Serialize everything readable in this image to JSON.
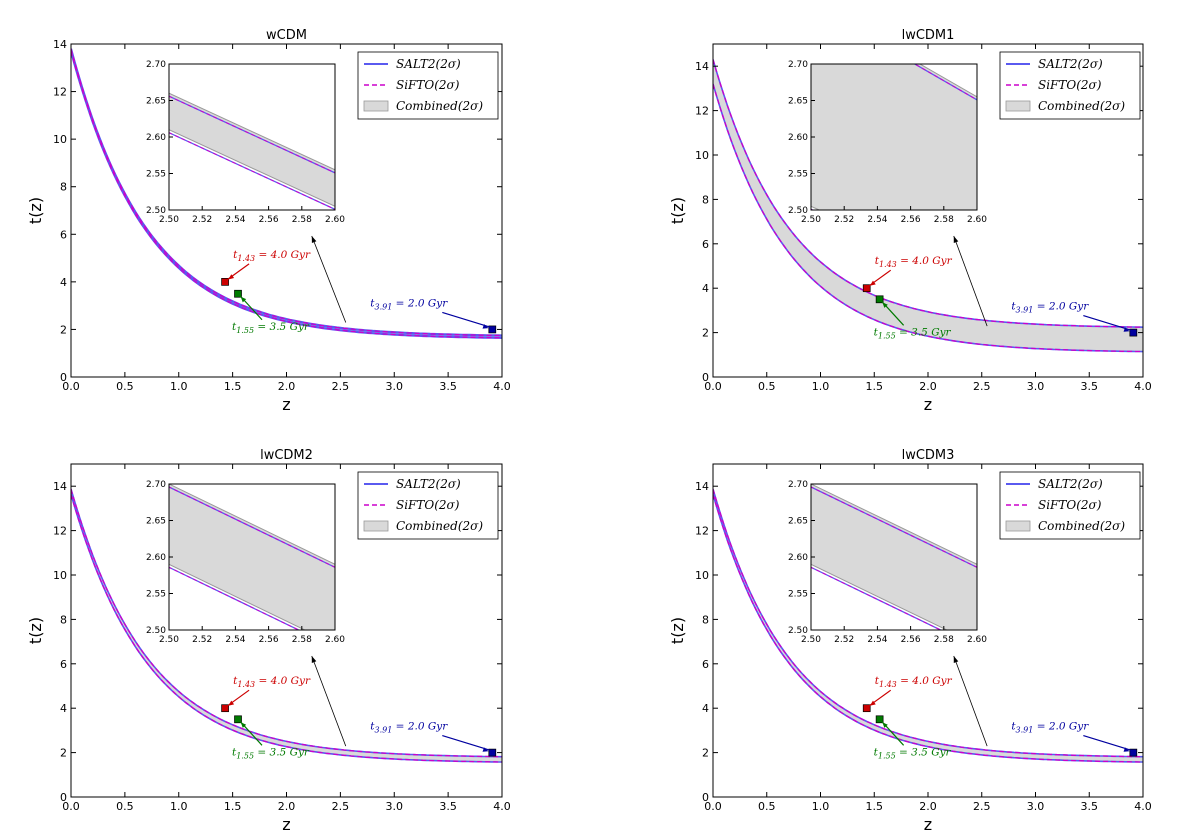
{
  "figure": {
    "colors": {
      "salt2": "#5a5af0",
      "sifto": "#cc00cc",
      "band_fill": "#d9d9d9",
      "band_edge": "#999999",
      "red": "#cc0000",
      "green": "#007a00",
      "blue": "#00009f"
    }
  },
  "chart_data": [
    {
      "type": "line",
      "title": "wCDM",
      "xlabel": "z",
      "ylabel": "t(z)",
      "xlim": [
        0,
        4
      ],
      "ylim": [
        0,
        14
      ],
      "xticks": [
        "0.0",
        "0.5",
        "1.0",
        "1.5",
        "2.0",
        "2.5",
        "3.0",
        "3.5",
        "4.0"
      ],
      "yticks": [
        "0",
        "2",
        "4",
        "6",
        "8",
        "10",
        "12",
        "14"
      ],
      "curve": {
        "t0": 13.75,
        "amp": 12.1,
        "k": 1.4
      },
      "band_width": 0.05,
      "legend": [
        "SALT2(2σ)",
        "SiFTO(2σ)",
        "Combined(2σ)"
      ],
      "inset": {
        "xlim": [
          2.5,
          2.6
        ],
        "ylim": [
          2.5,
          2.7
        ],
        "xticks": [
          "2.50",
          "2.52",
          "2.54",
          "2.56",
          "2.58",
          "2.60"
        ],
        "yticks": [
          "2.50",
          "2.55",
          "2.60",
          "2.65",
          "2.70"
        ],
        "upper": [
          [
            2.5,
            2.66
          ],
          [
            2.6,
            2.555
          ]
        ],
        "lower": [
          [
            2.5,
            2.61
          ],
          [
            2.6,
            2.505
          ]
        ]
      },
      "points": [
        {
          "name": "red",
          "z": 1.43,
          "t": 4.0,
          "label_sub": "1.43",
          "label_val": "4.0"
        },
        {
          "name": "green",
          "z": 1.55,
          "t": 3.5,
          "label_sub": "1.55",
          "label_val": "3.5"
        },
        {
          "name": "blue",
          "z": 3.91,
          "t": 2.0,
          "label_sub": "3.91",
          "label_val": "2.0"
        }
      ]
    },
    {
      "type": "line",
      "title": "lwCDM1",
      "xlabel": "z",
      "ylabel": "t(z)",
      "xlim": [
        0,
        4
      ],
      "ylim": [
        0,
        15
      ],
      "xticks": [
        "0.0",
        "0.5",
        "1.0",
        "1.5",
        "2.0",
        "2.5",
        "3.0",
        "3.5",
        "4.0"
      ],
      "yticks": [
        "0",
        "2",
        "4",
        "6",
        "8",
        "10",
        "12",
        "14"
      ],
      "curve": {
        "t0": 13.75,
        "amp": 12.1,
        "k": 1.4
      },
      "band_width": 0.55,
      "legend": [
        "SALT2(2σ)",
        "SiFTO(2σ)",
        "Combined(2σ)"
      ],
      "inset": {
        "xlim": [
          2.5,
          2.6
        ],
        "ylim": [
          2.5,
          2.7
        ],
        "xticks": [
          "2.50",
          "2.52",
          "2.54",
          "2.56",
          "2.58",
          "2.60"
        ],
        "yticks": [
          "2.50",
          "2.55",
          "2.60",
          "2.65",
          "2.70"
        ],
        "upper": [
          [
            2.558,
            2.71
          ],
          [
            2.6,
            2.655
          ]
        ],
        "lower": [
          [
            2.5,
            2.505
          ],
          [
            2.515,
            2.49
          ]
        ]
      },
      "points": [
        {
          "name": "red",
          "z": 1.43,
          "t": 4.0,
          "label_sub": "1.43",
          "label_val": "4.0"
        },
        {
          "name": "green",
          "z": 1.55,
          "t": 3.5,
          "label_sub": "1.55",
          "label_val": "3.5"
        },
        {
          "name": "blue",
          "z": 3.91,
          "t": 2.0,
          "label_sub": "3.91",
          "label_val": "2.0"
        }
      ]
    },
    {
      "type": "line",
      "title": "lwCDM2",
      "xlabel": "z",
      "ylabel": "t(z)",
      "xlim": [
        0,
        4
      ],
      "ylim": [
        0,
        15
      ],
      "xticks": [
        "0.0",
        "0.5",
        "1.0",
        "1.5",
        "2.0",
        "2.5",
        "3.0",
        "3.5",
        "4.0"
      ],
      "yticks": [
        "0",
        "2",
        "4",
        "6",
        "8",
        "10",
        "12",
        "14"
      ],
      "curve": {
        "t0": 13.75,
        "amp": 12.1,
        "k": 1.4
      },
      "band_width": 0.12,
      "legend": [
        "SALT2(2σ)",
        "SiFTO(2σ)",
        "Combined(2σ)"
      ],
      "inset": {
        "xlim": [
          2.5,
          2.6
        ],
        "ylim": [
          2.5,
          2.7
        ],
        "xticks": [
          "2.50",
          "2.52",
          "2.54",
          "2.56",
          "2.58",
          "2.60"
        ],
        "yticks": [
          "2.50",
          "2.55",
          "2.60",
          "2.65",
          "2.70"
        ],
        "upper": [
          [
            2.5,
            2.7
          ],
          [
            2.6,
            2.59
          ]
        ],
        "lower": [
          [
            2.5,
            2.59
          ],
          [
            2.6,
            2.48
          ]
        ]
      },
      "points": [
        {
          "name": "red",
          "z": 1.43,
          "t": 4.0,
          "label_sub": "1.43",
          "label_val": "4.0"
        },
        {
          "name": "green",
          "z": 1.55,
          "t": 3.5,
          "label_sub": "1.55",
          "label_val": "3.5"
        },
        {
          "name": "blue",
          "z": 3.91,
          "t": 2.0,
          "label_sub": "3.91",
          "label_val": "2.0"
        }
      ]
    },
    {
      "type": "line",
      "title": "lwCDM3",
      "xlabel": "z",
      "ylabel": "t(z)",
      "xlim": [
        0,
        4
      ],
      "ylim": [
        0,
        15
      ],
      "xticks": [
        "0.0",
        "0.5",
        "1.0",
        "1.5",
        "2.0",
        "2.5",
        "3.0",
        "3.5",
        "4.0"
      ],
      "yticks": [
        "0",
        "2",
        "4",
        "6",
        "8",
        "10",
        "12",
        "14"
      ],
      "curve": {
        "t0": 13.75,
        "amp": 12.1,
        "k": 1.4
      },
      "band_width": 0.12,
      "legend": [
        "SALT2(2σ)",
        "SiFTO(2σ)",
        "Combined(2σ)"
      ],
      "inset": {
        "xlim": [
          2.5,
          2.6
        ],
        "ylim": [
          2.5,
          2.7
        ],
        "xticks": [
          "2.50",
          "2.52",
          "2.54",
          "2.56",
          "2.58",
          "2.60"
        ],
        "yticks": [
          "2.50",
          "2.55",
          "2.60",
          "2.65",
          "2.70"
        ],
        "upper": [
          [
            2.5,
            2.7
          ],
          [
            2.6,
            2.59
          ]
        ],
        "lower": [
          [
            2.5,
            2.59
          ],
          [
            2.6,
            2.48
          ]
        ]
      },
      "points": [
        {
          "name": "red",
          "z": 1.43,
          "t": 4.0,
          "label_sub": "1.43",
          "label_val": "4.0"
        },
        {
          "name": "green",
          "z": 1.55,
          "t": 3.5,
          "label_sub": "1.55",
          "label_val": "3.5"
        },
        {
          "name": "blue",
          "z": 3.91,
          "t": 2.0,
          "label_sub": "3.91",
          "label_val": "2.0"
        }
      ]
    }
  ]
}
